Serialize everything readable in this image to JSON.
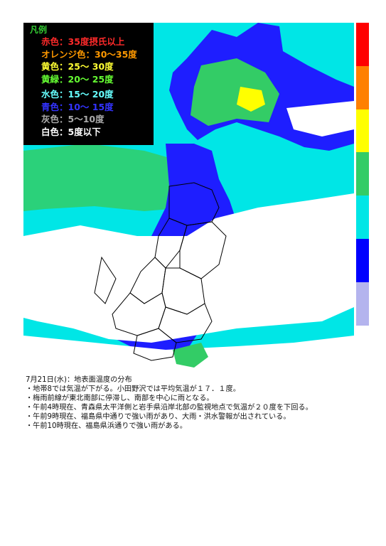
{
  "legend": {
    "title": "凡例",
    "items": [
      {
        "text": "赤色：35度摂氏以上",
        "color": "#ff2a2a"
      },
      {
        "text": "オレンジ色：30～35度",
        "color": "#ff9900"
      },
      {
        "text": "黄色：25～ 30度",
        "color": "#ffff33"
      },
      {
        "text": "黄緑：20～ 25度",
        "color": "#66ff33"
      },
      {
        "text": "水色：15～ 20度",
        "color": "#66ffff"
      },
      {
        "text": "青色：10～ 15度",
        "color": "#3333ff"
      },
      {
        "text": "灰色：5～10度",
        "color": "#aaaaaa"
      },
      {
        "text": "白色：5度以下",
        "color": "#ffffff"
      }
    ]
  },
  "color_scale": [
    "#ff0000",
    "#ff8000",
    "#ffff00",
    "#33cc66",
    "#00e6e6",
    "#0000ff",
    "#b4b4ee"
  ],
  "map": {
    "background_color": "#00e6e6",
    "cloud_color": "#ffffff",
    "cold_color": "#1e1eff",
    "warm_color": "#33cc66",
    "hot_color": "#ffff00"
  },
  "caption": {
    "title": "7月21日(水)：地表面温度の分布",
    "lines": [
      "・地帯8では気温が下がる。小田野沢では平均気温が１７．１度。",
      "・梅雨前線が東北南部に停滞し、南部を中心に雨となる。",
      "・午前4時現在、青森県太平洋側と岩手県沿岸北部の監視地点で気温が２０度を下回る。",
      "・午前9時現在、福島県中通りで強い雨があり、大雨・洪水警報が出されている。",
      "・午前10時現在、福島県浜通りで強い雨がある。"
    ]
  }
}
